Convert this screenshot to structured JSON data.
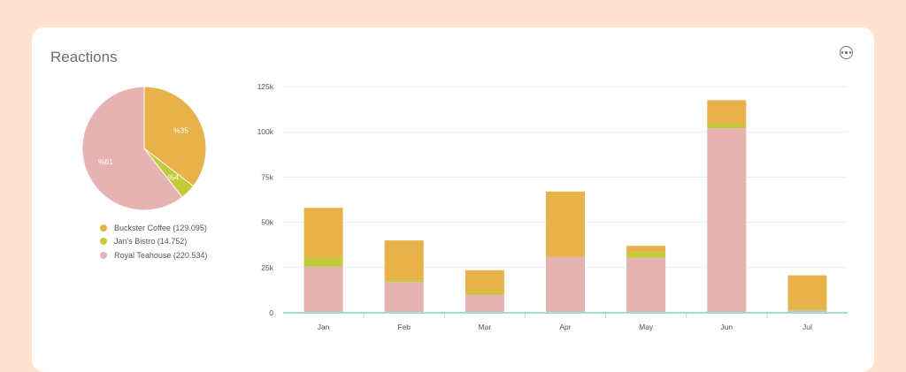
{
  "card": {
    "title": "Reactions"
  },
  "colors": {
    "buckster": "#e8b24b",
    "jans": "#c2ca3a",
    "royal": "#e7b2b2",
    "baseline": "#9fdcd6"
  },
  "chart_data": [
    {
      "type": "pie",
      "slices": [
        {
          "name": "Buckster Coffee",
          "value": 129.095,
          "label": "%35",
          "legend": "Buckster Coffee (129.095)"
        },
        {
          "name": "Jan's Bistro",
          "value": 14.752,
          "label": "%4",
          "legend": "Jan's Bistro (14.752)"
        },
        {
          "name": "Royal Teahouse",
          "value": 220.534,
          "label": "%61",
          "legend": "Royal Teahouse (220.534)"
        }
      ]
    },
    {
      "type": "bar",
      "stacked": true,
      "categories": [
        "Jan",
        "Feb",
        "Mar",
        "Apr",
        "May",
        "Jun",
        "Jul"
      ],
      "series": [
        {
          "name": "Royal Teahouse",
          "values": [
            25500,
            17000,
            10000,
            31000,
            30500,
            102000,
            1500
          ]
        },
        {
          "name": "Jan's Bistro",
          "values": [
            5000,
            1000,
            1500,
            0,
            3000,
            2500,
            700
          ]
        },
        {
          "name": "Buckster Coffee",
          "values": [
            27500,
            22000,
            12000,
            36000,
            3500,
            13000,
            18500
          ]
        }
      ],
      "ylim": [
        0,
        125000
      ],
      "yticks": [
        0,
        25000,
        50000,
        75000,
        100000,
        125000
      ],
      "ytick_labels": [
        "0",
        "25k",
        "50k",
        "75k",
        "100k",
        "125k"
      ],
      "grid": true
    }
  ]
}
